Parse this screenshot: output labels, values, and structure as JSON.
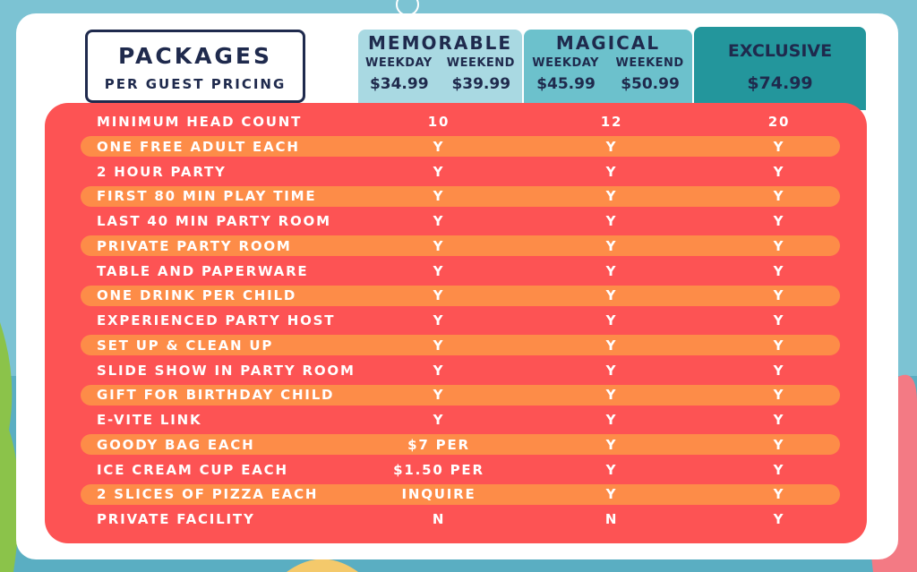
{
  "header": {
    "title": "PACKAGES",
    "subtitle": "PER GUEST PRICING"
  },
  "packages": [
    {
      "name": "MEMORABLE",
      "options": [
        {
          "label": "WEEKDAY",
          "price": "$34.99"
        },
        {
          "label": "WEEKEND",
          "price": "$39.99"
        }
      ]
    },
    {
      "name": "MAGICAL",
      "options": [
        {
          "label": "WEEKDAY",
          "price": "$45.99"
        },
        {
          "label": "WEEKEND",
          "price": "$50.99"
        }
      ]
    },
    {
      "name": "EXCLUSIVE",
      "price": "$74.99"
    }
  ],
  "table": {
    "rows": [
      [
        "MINIMUM HEAD COUNT",
        "10",
        "12",
        "20"
      ],
      [
        "ONE FREE ADULT EACH",
        "Y",
        "Y",
        "Y"
      ],
      [
        "2 HOUR PARTY",
        "Y",
        "Y",
        "Y"
      ],
      [
        "FIRST 80 MIN PLAY TIME",
        "Y",
        "Y",
        "Y"
      ],
      [
        "LAST 40 MIN PARTY ROOM",
        "Y",
        "Y",
        "Y"
      ],
      [
        "PRIVATE PARTY ROOM",
        "Y",
        "Y",
        "Y"
      ],
      [
        "TABLE AND PAPERWARE",
        "Y",
        "Y",
        "Y"
      ],
      [
        "ONE DRINK PER CHILD",
        "Y",
        "Y",
        "Y"
      ],
      [
        "EXPERIENCED PARTY HOST",
        "Y",
        "Y",
        "Y"
      ],
      [
        "SET UP & CLEAN UP",
        "Y",
        "Y",
        "Y"
      ],
      [
        "SLIDE SHOW IN PARTY ROOM",
        "Y",
        "Y",
        "Y"
      ],
      [
        "GIFT FOR BIRTHDAY CHILD",
        "Y",
        "Y",
        "Y"
      ],
      [
        "E-VITE LINK",
        "Y",
        "Y",
        "Y"
      ],
      [
        "GOODY BAG EACH",
        "$7 PER",
        "Y",
        "Y"
      ],
      [
        "ICE CREAM CUP EACH",
        "$1.50 PER",
        "Y",
        "Y"
      ],
      [
        "2 SLICES OF PIZZA EACH",
        "INQUIRE",
        "Y",
        "Y"
      ],
      [
        "PRIVATE FACILITY",
        "N",
        "N",
        "Y"
      ]
    ]
  }
}
